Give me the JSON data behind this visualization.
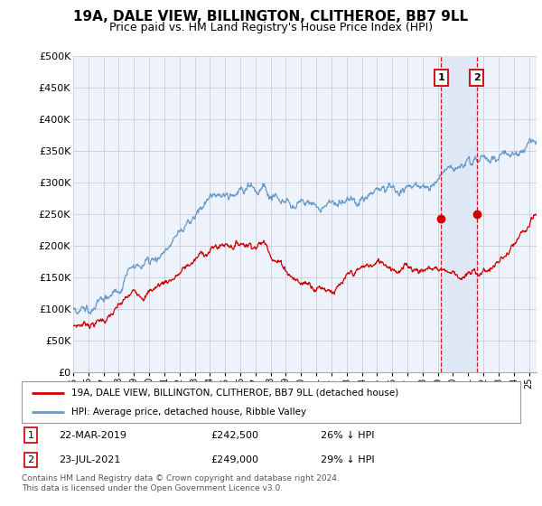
{
  "title": "19A, DALE VIEW, BILLINGTON, CLITHEROE, BB7 9LL",
  "subtitle": "Price paid vs. HM Land Registry's House Price Index (HPI)",
  "ytick_values": [
    0,
    50000,
    100000,
    150000,
    200000,
    250000,
    300000,
    350000,
    400000,
    450000,
    500000
  ],
  "ylim": [
    0,
    500000
  ],
  "xlim_start": 1995.0,
  "xlim_end": 2025.5,
  "xtick_years": [
    1995,
    1996,
    1997,
    1998,
    1999,
    2000,
    2001,
    2002,
    2003,
    2004,
    2005,
    2006,
    2007,
    2008,
    2009,
    2010,
    2011,
    2012,
    2013,
    2014,
    2015,
    2016,
    2017,
    2018,
    2019,
    2020,
    2021,
    2022,
    2023,
    2024,
    2025
  ],
  "hpi_color": "#6699cc",
  "property_color": "#cc0000",
  "marker1_date": 2019.22,
  "marker1_value": 242500,
  "marker2_date": 2021.56,
  "marker2_value": 249000,
  "marker_vline_color": "#cc0000",
  "marker_box_color": "#cc0000",
  "legend_label_property": "19A, DALE VIEW, BILLINGTON, CLITHEROE, BB7 9LL (detached house)",
  "legend_label_hpi": "HPI: Average price, detached house, Ribble Valley",
  "annotation1_label": "1",
  "annotation1_date": "22-MAR-2019",
  "annotation1_price": "£242,500",
  "annotation1_pct": "26% ↓ HPI",
  "annotation2_label": "2",
  "annotation2_date": "23-JUL-2021",
  "annotation2_price": "£249,000",
  "annotation2_pct": "29% ↓ HPI",
  "footer": "Contains HM Land Registry data © Crown copyright and database right 2024.\nThis data is licensed under the Open Government Licence v3.0.",
  "bg_color": "#ffffff",
  "plot_bg_color": "#eef2fa",
  "grid_color": "#ccccdd",
  "shade_color": "#dde8f5",
  "title_fontsize": 11,
  "subtitle_fontsize": 9
}
